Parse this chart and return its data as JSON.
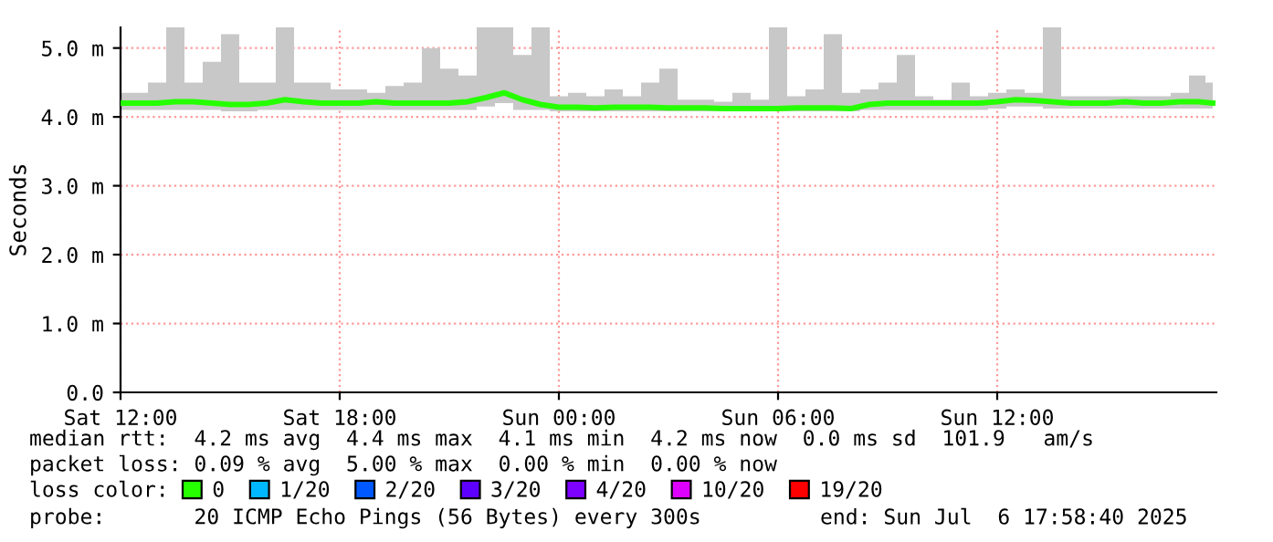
{
  "chart_data": {
    "type": "line",
    "ylabel": "Seconds",
    "x": [
      "2025-07-05T12:00",
      "2025-07-05T12:30",
      "2025-07-05T13:00",
      "2025-07-05T13:30",
      "2025-07-05T14:00",
      "2025-07-05T14:30",
      "2025-07-05T15:00",
      "2025-07-05T15:30",
      "2025-07-05T16:00",
      "2025-07-05T16:30",
      "2025-07-05T17:00",
      "2025-07-05T17:30",
      "2025-07-05T18:00",
      "2025-07-05T18:30",
      "2025-07-05T19:00",
      "2025-07-05T19:30",
      "2025-07-05T20:00",
      "2025-07-05T20:30",
      "2025-07-05T21:00",
      "2025-07-05T21:30",
      "2025-07-05T22:00",
      "2025-07-05T22:30",
      "2025-07-05T23:00",
      "2025-07-05T23:30",
      "2025-07-06T00:00",
      "2025-07-06T00:30",
      "2025-07-06T01:00",
      "2025-07-06T01:30",
      "2025-07-06T02:00",
      "2025-07-06T02:30",
      "2025-07-06T03:00",
      "2025-07-06T03:30",
      "2025-07-06T04:00",
      "2025-07-06T04:30",
      "2025-07-06T05:00",
      "2025-07-06T05:30",
      "2025-07-06T06:00",
      "2025-07-06T06:30",
      "2025-07-06T07:00",
      "2025-07-06T07:30",
      "2025-07-06T08:00",
      "2025-07-06T08:30",
      "2025-07-06T09:00",
      "2025-07-06T09:30",
      "2025-07-06T10:00",
      "2025-07-06T10:30",
      "2025-07-06T11:00",
      "2025-07-06T11:30",
      "2025-07-06T12:00",
      "2025-07-06T12:30",
      "2025-07-06T13:00",
      "2025-07-06T13:30",
      "2025-07-06T14:00",
      "2025-07-06T14:30",
      "2025-07-06T15:00",
      "2025-07-06T15:30",
      "2025-07-06T16:00",
      "2025-07-06T16:30",
      "2025-07-06T17:00",
      "2025-07-06T17:30",
      "2025-07-06T17:54"
    ],
    "series": [
      {
        "color": "#26ff00",
        "values": [
          4.2,
          4.2,
          4.2,
          4.22,
          4.22,
          4.2,
          4.18,
          4.18,
          4.2,
          4.25,
          4.22,
          4.2,
          4.2,
          4.2,
          4.22,
          4.2,
          4.2,
          4.2,
          4.2,
          4.22,
          4.28,
          4.35,
          4.25,
          4.18,
          4.14,
          4.14,
          4.13,
          4.14,
          4.14,
          4.14,
          4.13,
          4.13,
          4.13,
          4.12,
          4.12,
          4.12,
          4.12,
          4.13,
          4.13,
          4.13,
          4.12,
          4.18,
          4.2,
          4.2,
          4.2,
          4.2,
          4.2,
          4.2,
          4.22,
          4.25,
          4.24,
          4.22,
          4.2,
          4.2,
          4.2,
          4.22,
          4.2,
          4.2,
          4.22,
          4.22,
          4.2
        ],
        "lower": [
          4.1,
          4.1,
          4.1,
          4.1,
          4.1,
          4.1,
          4.08,
          4.08,
          4.1,
          4.1,
          4.1,
          4.1,
          4.1,
          4.1,
          4.1,
          4.1,
          4.1,
          4.1,
          4.1,
          4.1,
          4.15,
          4.2,
          4.1,
          4.1,
          4.08,
          4.08,
          4.08,
          4.08,
          4.08,
          4.08,
          4.08,
          4.08,
          4.08,
          4.08,
          4.08,
          4.08,
          4.08,
          4.08,
          4.08,
          4.08,
          4.08,
          4.1,
          4.1,
          4.1,
          4.1,
          4.1,
          4.1,
          4.1,
          4.12,
          4.15,
          4.15,
          4.12,
          4.12,
          4.12,
          4.12,
          4.12,
          4.12,
          4.12,
          4.12,
          4.12,
          4.12
        ],
        "upper": [
          4.35,
          4.35,
          4.5,
          5.3,
          4.5,
          4.8,
          5.2,
          4.5,
          4.5,
          5.3,
          4.5,
          4.5,
          4.4,
          4.4,
          4.35,
          4.45,
          4.5,
          5.0,
          4.7,
          4.6,
          5.3,
          5.3,
          4.9,
          5.3,
          4.3,
          4.35,
          4.3,
          4.4,
          4.3,
          4.5,
          4.7,
          4.25,
          4.25,
          4.22,
          4.35,
          4.25,
          5.3,
          4.3,
          4.4,
          5.2,
          4.35,
          4.4,
          4.5,
          4.9,
          4.3,
          4.25,
          4.5,
          4.3,
          4.35,
          4.4,
          4.35,
          5.3,
          4.3,
          4.3,
          4.3,
          4.3,
          4.3,
          4.3,
          4.35,
          4.6,
          4.5
        ]
      },
      {
        "name": "0",
        "color": "#26ff00",
        "values": [
          null,
          null,
          null,
          null,
          null,
          null,
          null,
          null,
          null,
          null,
          null,
          null,
          null,
          null,
          null,
          null,
          null,
          null,
          null,
          null,
          null,
          null,
          null,
          null,
          null,
          null,
          null,
          null,
          null,
          null,
          null,
          null,
          null,
          null,
          null,
          null,
          null,
          null,
          null,
          null,
          null,
          null,
          null,
          null,
          null,
          null,
          null,
          null,
          null,
          null,
          null,
          null,
          null,
          null,
          null,
          null,
          null,
          null,
          null,
          null,
          null
        ]
      },
      {
        "name": "1/20",
        "color": "#00b8ff",
        "values": [
          null,
          null,
          null,
          null,
          null,
          null,
          null,
          null,
          null,
          null,
          null,
          null,
          null,
          null,
          null,
          null,
          null,
          null,
          null,
          null,
          null,
          null,
          null,
          null,
          null,
          null,
          null,
          null,
          null,
          null,
          null,
          null,
          null,
          null,
          null,
          null,
          null,
          null,
          null,
          null,
          null,
          null,
          null,
          null,
          null,
          null,
          null,
          null,
          null,
          null,
          null,
          null,
          null,
          null,
          null,
          null,
          null,
          null,
          null,
          null,
          null
        ]
      },
      {
        "name": "2/20",
        "color": "#0059ff",
        "values": [
          null,
          null,
          null,
          null,
          null,
          null,
          null,
          null,
          null,
          null,
          null,
          null,
          null,
          null,
          null,
          null,
          null,
          null,
          null,
          null,
          null,
          null,
          null,
          null,
          null,
          null,
          null,
          null,
          null,
          null,
          null,
          null,
          null,
          null,
          null,
          null,
          null,
          null,
          null,
          null,
          null,
          null,
          null,
          null,
          null,
          null,
          null,
          null,
          null,
          null,
          null,
          null,
          null,
          null,
          null,
          null,
          null,
          null,
          null,
          null,
          null
        ]
      },
      {
        "name": "3/20",
        "color": "#5e00ff",
        "values": [
          null,
          null,
          null,
          null,
          null,
          null,
          null,
          null,
          null,
          null,
          null,
          null,
          null,
          null,
          null,
          null,
          null,
          null,
          null,
          null,
          null,
          null,
          null,
          null,
          null,
          null,
          null,
          null,
          null,
          null,
          null,
          null,
          null,
          null,
          null,
          null,
          null,
          null,
          null,
          null,
          null,
          null,
          null,
          null,
          null,
          null,
          null,
          null,
          null,
          null,
          null,
          null,
          null,
          null,
          null,
          null,
          null,
          null,
          null,
          null,
          null
        ]
      },
      {
        "name": "4/20",
        "color": "#7e00ff",
        "values": [
          null,
          null,
          null,
          null,
          null,
          null,
          null,
          null,
          null,
          null,
          null,
          null,
          null,
          null,
          null,
          null,
          null,
          null,
          null,
          null,
          null,
          null,
          null,
          null,
          null,
          null,
          null,
          null,
          null,
          null,
          null,
          null,
          null,
          null,
          null,
          null,
          null,
          null,
          null,
          null,
          null,
          null,
          null,
          null,
          null,
          null,
          null,
          null,
          null,
          null,
          null,
          null,
          null,
          null,
          null,
          null,
          null,
          null,
          null,
          null,
          null
        ]
      },
      {
        "name": "10/20",
        "color": "#dd00ff",
        "values": [
          null,
          null,
          null,
          null,
          null,
          null,
          null,
          null,
          null,
          null,
          null,
          null,
          null,
          null,
          null,
          null,
          null,
          null,
          null,
          null,
          null,
          null,
          null,
          null,
          null,
          null,
          null,
          null,
          null,
          null,
          null,
          null,
          null,
          null,
          null,
          null,
          null,
          null,
          null,
          null,
          null,
          null,
          null,
          null,
          null,
          null,
          null,
          null,
          null,
          null,
          null,
          null,
          null,
          null,
          null,
          null,
          null,
          null,
          null,
          null,
          null
        ]
      },
      {
        "name": "19/20",
        "color": "#ff0000",
        "values": [
          null,
          null,
          null,
          null,
          null,
          null,
          null,
          null,
          null,
          null,
          null,
          null,
          null,
          null,
          null,
          null,
          null,
          null,
          null,
          null,
          null,
          null,
          null,
          null,
          null,
          null,
          null,
          null,
          null,
          null,
          null,
          null,
          null,
          null,
          null,
          null,
          null,
          null,
          null,
          null,
          null,
          null,
          null,
          null,
          null,
          null,
          null,
          null,
          null,
          null,
          null,
          null,
          null,
          null,
          null,
          null,
          null,
          null,
          null,
          null,
          null
        ]
      }
    ],
    "xlim": [
      "2025-07-05T12:00",
      "2025-07-06T18:00"
    ],
    "xticks": [
      {
        "value": "2025-07-05T12:00",
        "label": "Sat 12:00"
      },
      {
        "value": "2025-07-05T18:00",
        "label": "Sat 18:00"
      },
      {
        "value": "2025-07-06T00:00",
        "label": "Sun 00:00"
      },
      {
        "value": "2025-07-06T06:00",
        "label": "Sun 06:00"
      },
      {
        "value": "2025-07-06T12:00",
        "label": "Sun 12:00"
      }
    ],
    "ylim": [
      0,
      5.3
    ],
    "yticks": [
      {
        "value": 0,
        "label": "0.0"
      },
      {
        "value": 1,
        "label": "1.0 m"
      },
      {
        "value": 2,
        "label": "2.0 m"
      },
      {
        "value": 3,
        "label": "3.0 m"
      },
      {
        "value": 4,
        "label": "4.0 m"
      },
      {
        "value": 5,
        "label": "5.0 m"
      }
    ],
    "grid": true,
    "legend": "bottom",
    "legend_title": "loss color:",
    "annotations": [
      "median rtt:  4.2 ms avg  4.4 ms max  4.1 ms min  4.2 ms now  0.0 ms sd  101.9   am/s",
      "packet loss: 0.09 % avg  5.00 % max  0.00 % min  0.00 % now",
      "probe:       20 ICMP Echo Pings (56 Bytes) every 300s",
      "end: Sun Jul  6 17:58:40 2025"
    ]
  }
}
